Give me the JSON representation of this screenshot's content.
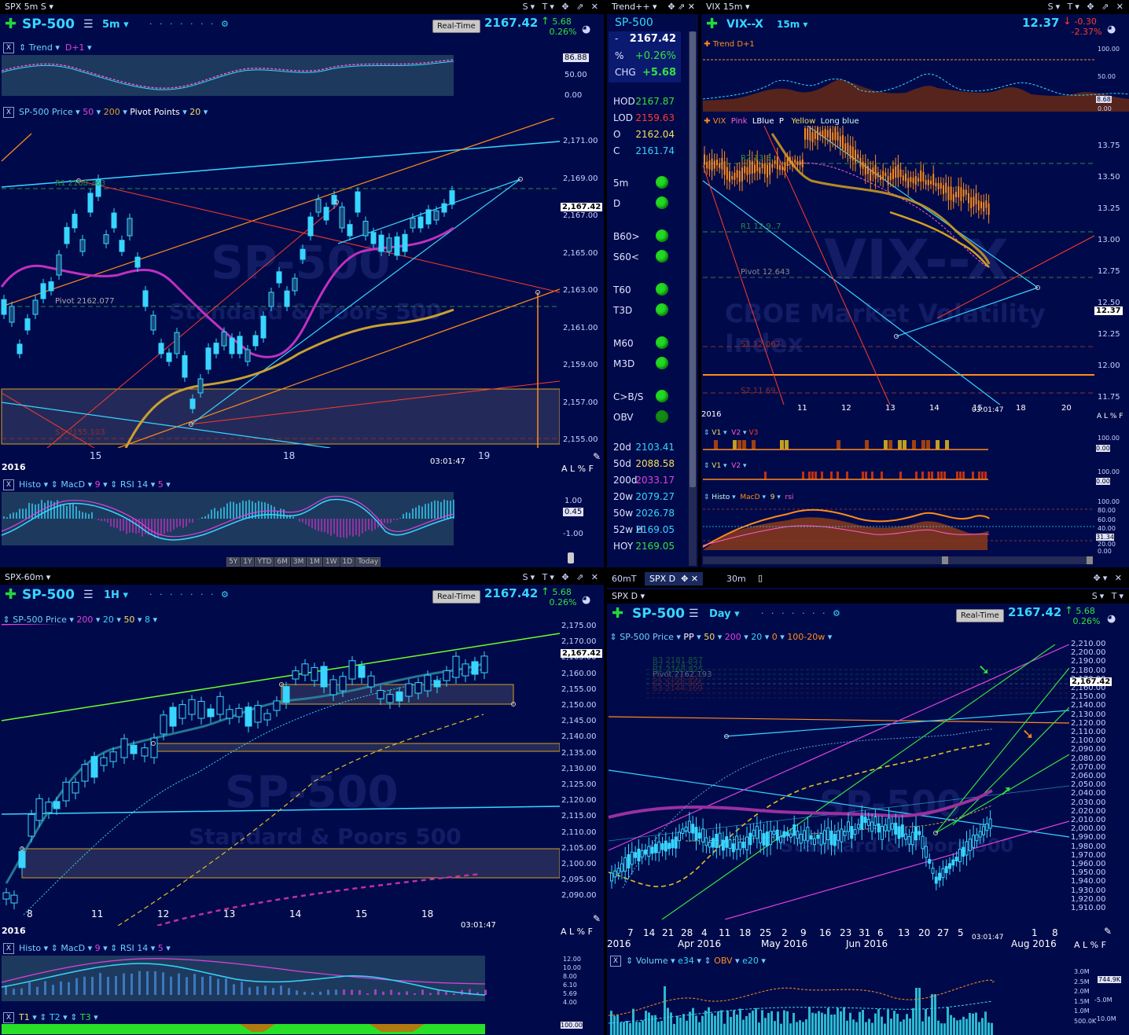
{
  "colors": {
    "bg": "#000a4a",
    "cyan": "#37d5ff",
    "green": "#35e040",
    "red": "#ff3a2a",
    "orange": "#ff8c1a",
    "magenta": "#e040e0",
    "gold": "#d4a020"
  },
  "tl": {
    "window_title": "SPX 5m S",
    "symbol": "SP-500",
    "interval": "5m",
    "realtime": "Real-Time",
    "price": "2167.42",
    "change": "5.68",
    "change_pct": "0.26%",
    "trend_strip": {
      "x": "X",
      "label": "Trend",
      "param": "D+1"
    },
    "trend_axis": [
      "86.88",
      "50.00",
      "0.00"
    ],
    "price_strip": {
      "label": "SP-500 Price",
      "p1": "50",
      "p2": "200",
      "p3": "Pivot Points",
      "p4": "20"
    },
    "price_axis": [
      "2,171.00",
      "2,169.00",
      "2,167.00",
      "2,165.00",
      "2,163.00",
      "2,161.00",
      "2,159.00",
      "2,157.00",
      "2,155.00"
    ],
    "last_price_box": "2,167.42",
    "annot": {
      "r1": "R1 2168.363",
      "pivot": "Pivot 2162.077",
      "s1": "S1 2155.103"
    },
    "watermark": {
      "big": "SP-500",
      "small": "Standard & Poors 500"
    },
    "dates": [
      "15",
      "18",
      "19"
    ],
    "time": "03:01:47",
    "alf": "A L % F",
    "histo_strip": {
      "label": "Histo",
      "macd": "MacD",
      "n": "9",
      "rsi": "RSI 14",
      "n2": "5"
    },
    "histo_axis": [
      "1.00",
      "0.45",
      "-1.00"
    ],
    "ranges": [
      "5Y",
      "1Y",
      "YTD",
      "6M",
      "3M",
      "1M",
      "1W",
      "1D",
      "Today"
    ]
  },
  "watch": {
    "title": "Trend++",
    "symbol": "SP-500",
    "rows": [
      {
        "k": "-",
        "v": "2167.42",
        "c": "#ffffff"
      },
      {
        "k": "%",
        "v": "+0.26%",
        "c": "#35e040"
      },
      {
        "k": "CHG",
        "v": "+5.68",
        "c": "#35e040"
      }
    ],
    "ohlc": [
      {
        "k": "HOD",
        "v": "2167.87",
        "c": "#35e040"
      },
      {
        "k": "LOD",
        "v": "2159.63",
        "c": "#ff3a2a"
      },
      {
        "k": "O",
        "v": "2162.04",
        "c": "#f0e060"
      },
      {
        "k": "C",
        "v": "2161.74",
        "c": "#37d5ff"
      }
    ],
    "signals": [
      "5m",
      "D",
      "B60>",
      "S60<",
      "T60",
      "T3D",
      "M60",
      "M3D",
      "C>B/S",
      "OBV"
    ],
    "mas": [
      {
        "k": "20d",
        "v": "2103.41",
        "c": "#37d5ff"
      },
      {
        "k": "50d",
        "v": "2088.58",
        "c": "#f0e060"
      },
      {
        "k": "200d",
        "v": "2033.17",
        "c": "#e040e0"
      },
      {
        "k": "20w",
        "v": "2079.27",
        "c": "#37d5ff"
      },
      {
        "k": "50w",
        "v": "2026.78",
        "c": "#37d5ff"
      },
      {
        "k": "52w H",
        "v": "2169.05",
        "c": "#37d5ff"
      },
      {
        "k": "HOY",
        "v": "2169.05",
        "c": "#35e040"
      }
    ]
  },
  "tr": {
    "window_title": "VIX 15m",
    "symbol": "VIX--X",
    "interval": "15m",
    "price": "12.37",
    "change": "-0.30",
    "change_pct": "-2.37%",
    "trend_strip": {
      "label": "Trend",
      "param": "D+1"
    },
    "trend_axis": [
      "100.00",
      "50.00",
      "8.68",
      "0.00"
    ],
    "legend": {
      "vix": "VIX",
      "pink": "Pink",
      "lblue": "LBlue",
      "p": "P",
      "yellow": "Yellow",
      "longblue": "Long blue"
    },
    "price_axis": [
      "13.75",
      "13.50",
      "13.25",
      "13.00",
      "12.75",
      "12.50",
      "12.25",
      "12.00",
      "11.75"
    ],
    "last_price_box": "12.37",
    "annot": {
      "r2": "R2 13.3..",
      "r1": "R1 12.9..7",
      "pivot": "Pivot 12.643",
      "s1": "S1 12.067",
      "s2": "S2 11.69.."
    },
    "watermark": {
      "big": "VIX--X",
      "small": "CBOE Market Volatility Index"
    },
    "dates": [
      "2016",
      "11",
      "12",
      "13",
      "14",
      "15",
      "18",
      "20"
    ],
    "time": "03:01:47",
    "alf": "A L % F",
    "v_strip1": {
      "v1": "V1",
      "v2": "V2",
      "v3": "V3"
    },
    "v_strip2": {
      "v1": "V1",
      "v2": "V2"
    },
    "v_axis": [
      "100.00",
      "0.00"
    ],
    "histo_strip": {
      "label": "Histo",
      "macd": "MacD",
      "n": "9",
      "rsi": "rsi"
    },
    "histo_axis": [
      "100.00",
      "80.00",
      "60.00",
      "40.00",
      "31.34",
      "20.00",
      "0.00"
    ]
  },
  "bl": {
    "window_title": "SPX-60m",
    "symbol": "SP-500",
    "interval": "1H",
    "realtime": "Real-Time",
    "price": "2167.42",
    "change": "5.68",
    "change_pct": "0.26%",
    "price_strip": {
      "label": "SP-500 Price",
      "p1": "200",
      "p2": "20",
      "p3": "50",
      "p4": "8"
    },
    "price_axis": [
      "2,175.00",
      "2,170.00",
      "2,165.00",
      "2,160.00",
      "2,155.00",
      "2,150.00",
      "2,145.00",
      "2,140.00",
      "2,135.00",
      "2,130.00",
      "2,125.00",
      "2,120.00",
      "2,115.00",
      "2,110.00",
      "2,105.00",
      "2,100.00",
      "2,095.00",
      "2,090.00"
    ],
    "last_price_box": "2,167.42",
    "watermark": {
      "big": "SP-500",
      "small": "Standard & Poors 500"
    },
    "dates": [
      "8",
      "11",
      "12",
      "13",
      "14",
      "15",
      "18"
    ],
    "year": "2016",
    "time": "03:01:47",
    "alf": "A L % F",
    "histo_strip": {
      "label": "Histo",
      "macd": "MacD",
      "n": "9",
      "rsi": "RSI 14",
      "n2": "5"
    },
    "histo_axis": [
      "12.00",
      "10.00",
      "8.00",
      "6.10",
      "5.69",
      "4.00"
    ],
    "t_strip": {
      "t1": "T1",
      "t2": "T2",
      "t3": "T3"
    },
    "t_axis": "100.00"
  },
  "br": {
    "tabs": [
      "60mT",
      "SPX D",
      "30m"
    ],
    "window_title": "SPX D",
    "symbol": "SP-500",
    "interval": "Day",
    "realtime": "Real-Time",
    "price": "2167.42",
    "change": "5.68",
    "change_pct": "0.26%",
    "price_strip": {
      "label": "SP-500 Price",
      "p0": "PP",
      "p1": "50",
      "p2": "200",
      "p3": "20",
      "p4": "0",
      "p5": "100-20w"
    },
    "price_axis": [
      "2,210.00",
      "2,200.00",
      "2,190.00",
      "2,180.00",
      "2,170.00",
      "2,160.00",
      "2,150.00",
      "2,140.00",
      "2,130.00",
      "2,120.00",
      "2,110.00",
      "2,100.00",
      "2,090.00",
      "2,080.00",
      "2,070.00",
      "2,060.00",
      "2,050.00",
      "2,040.00",
      "2,030.00",
      "2,020.00",
      "2,010.00",
      "2,000.00",
      "1,990.00",
      "1,980.00",
      "1,970.00",
      "1,960.00",
      "1,950.00",
      "1,940.00",
      "1,930.00",
      "1,920.00",
      "1,910.00"
    ],
    "last_price_box": "2,167.42",
    "annot": {
      "r3": "R3 2181.857",
      "r2": "R2 2174.521",
      "r1": "R1 2168.825",
      "pivot": "Pivot 2162.193",
      "s1": "S1 2156.497",
      "s2": "S2 2149.865",
      "s3": "S3 2144.169"
    },
    "watermark": {
      "big": "SP-500",
      "small": "Standard & Poors 500"
    },
    "dates": [
      "7",
      "14",
      "21",
      "28",
      "4",
      "11",
      "18",
      "25",
      "2",
      "9",
      "16",
      "23",
      "31",
      "6",
      "13",
      "20",
      "27",
      "5",
      "1",
      "8"
    ],
    "months": [
      "2016",
      "Apr 2016",
      "May 2016",
      "Jun 2016",
      "Aug 2016"
    ],
    "time": "03:01:47",
    "alf": "A L % F",
    "vol_strip": {
      "label": "Volume",
      "e1": "e34",
      "obv": "OBV",
      "e2": "e20"
    },
    "vol_axis": [
      "3.0M",
      "2.5M",
      "2.0M",
      "1.5M",
      "1.0M",
      "500.0K"
    ],
    "vol_box": "744.9K",
    "obv_axis": [
      "-5.0M",
      "-10.0M"
    ]
  }
}
